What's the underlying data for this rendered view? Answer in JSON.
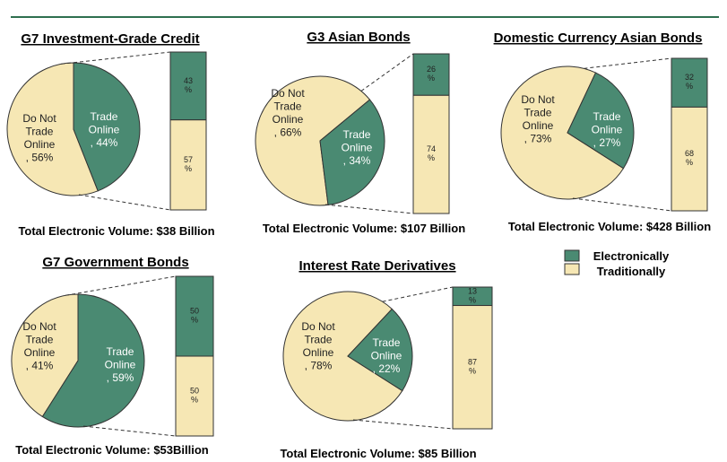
{
  "colors": {
    "online": "#4a8a72",
    "offline": "#f6e7b4",
    "rule": "#2f6f4f",
    "stroke": "#333333"
  },
  "legend": {
    "electronic": "Electronically",
    "traditional": "Traditionally"
  },
  "chart_data": [
    {
      "type": "pie",
      "title": "G7  Investment-Grade  Credit",
      "slices": [
        {
          "label": "Trade Online",
          "pct_text": ", 44%",
          "value": 44
        },
        {
          "label": "Do Not Trade Online",
          "pct_text": ", 56%",
          "value": 56
        }
      ],
      "bar": {
        "electronic": 43,
        "traditional": 57,
        "electronic_text": "43 %",
        "traditional_text": "57 %"
      },
      "total": "Total Electronic Volume:  $38 Billion"
    },
    {
      "type": "pie",
      "title": "G3  Asian  Bonds",
      "slices": [
        {
          "label": "Trade Online",
          "pct_text": ", 34%",
          "value": 34
        },
        {
          "label": "Do Not Trade Online",
          "pct_text": ", 66%",
          "value": 66
        }
      ],
      "bar": {
        "electronic": 26,
        "traditional": 74,
        "electronic_text": "26 %",
        "traditional_text": "74 %"
      },
      "total": "Total Electronic Volume:  $107 Billion"
    },
    {
      "type": "pie",
      "title": "Domestic  Currency  Asian  Bonds",
      "slices": [
        {
          "label": "Trade Online",
          "pct_text": ", 27%",
          "value": 27
        },
        {
          "label": "Do Not Trade Online",
          "pct_text": ", 73%",
          "value": 73
        }
      ],
      "bar": {
        "electronic": 32,
        "traditional": 68,
        "electronic_text": "32 %",
        "traditional_text": "68 %"
      },
      "total": "Total Electronic Volume:  $428 Billion"
    },
    {
      "type": "pie",
      "title": "G7  Government  Bonds",
      "slices": [
        {
          "label": "Trade Online",
          "pct_text": ", 59%",
          "value": 59
        },
        {
          "label": "Do Not Trade Online",
          "pct_text": ", 41%",
          "value": 41
        }
      ],
      "bar": {
        "electronic": 50,
        "traditional": 50,
        "electronic_text": "50 %",
        "traditional_text": "50 %"
      },
      "total": "Total Electronic Volume:  $53Billion"
    },
    {
      "type": "pie",
      "title": "Interest  Rate  Derivatives",
      "slices": [
        {
          "label": "Trade Online",
          "pct_text": ", 22%",
          "value": 22
        },
        {
          "label": "Do Not Trade Online",
          "pct_text": ", 78%",
          "value": 78
        }
      ],
      "bar": {
        "electronic": 13,
        "traditional": 87,
        "electronic_text": "13 %",
        "traditional_text": "87 %"
      },
      "total": "Total Electronic Volume:  $85 Billion"
    }
  ]
}
